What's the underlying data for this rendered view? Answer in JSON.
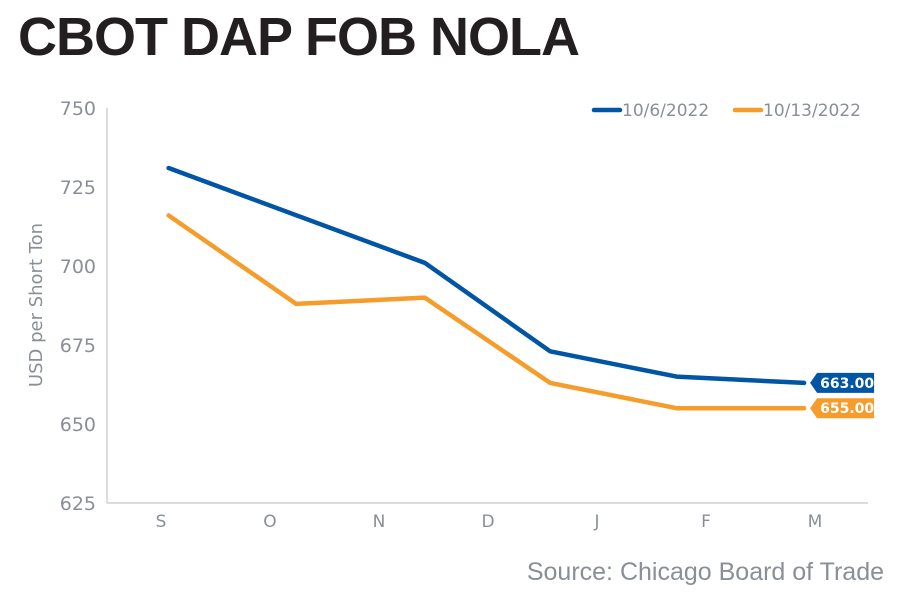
{
  "chart_data": {
    "type": "line",
    "title": "CBOT DAP FOB NOLA",
    "xlabel": "",
    "ylabel": "USD per Short Ton",
    "categories": [
      "S",
      "O",
      "N",
      "D",
      "J",
      "F",
      "M"
    ],
    "ylim": [
      625,
      750
    ],
    "yticks": [
      625,
      650,
      675,
      700,
      725,
      750
    ],
    "grid": false,
    "legend_position": "top-right",
    "series": [
      {
        "name": "10/6/2022",
        "color": "#0055a4",
        "x": [
          0.07,
          2.42,
          3.57,
          4.73,
          5.9
        ],
        "values": [
          731,
          701,
          673,
          665,
          663
        ],
        "end_label": "663.00"
      },
      {
        "name": "10/13/2022",
        "color": "#f59c2a",
        "x": [
          0.07,
          1.24,
          2.42,
          3.57,
          4.73,
          5.9
        ],
        "values": [
          716,
          688,
          690,
          663,
          655,
          655
        ],
        "end_label": "655.00"
      }
    ]
  },
  "source": "Source: Chicago Board of Trade"
}
